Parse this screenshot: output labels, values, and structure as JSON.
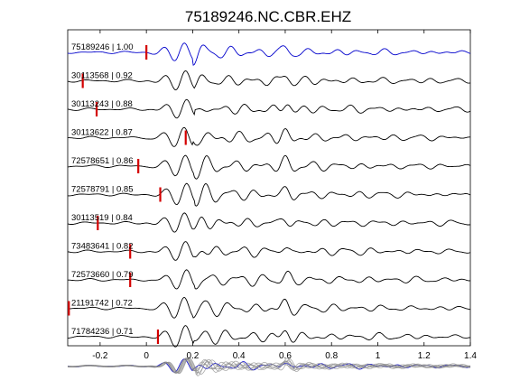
{
  "chart_data": {
    "type": "line",
    "title": "75189246.NC.CBR.EHZ",
    "xlabel": "",
    "ylabel": "",
    "xlim": [
      -0.34,
      1.4
    ],
    "x_ticks": [
      -0.2,
      0,
      0.2,
      0.4,
      0.6,
      0.8,
      1,
      1.2,
      1.4
    ],
    "x_tick_labels": [
      "-0.2",
      "0",
      "0.2",
      "0.4",
      "0.6",
      "0.8",
      "1",
      "1.2",
      "1.4"
    ],
    "grid": false,
    "colors": {
      "reference": "#0000cc",
      "trace": "#000000",
      "pick": "#d40000",
      "overlay": "#888888"
    },
    "series": [
      {
        "name": "75189246 | 1.00",
        "label_x": -0.34,
        "pick_x": 0.0,
        "reference": true
      },
      {
        "name": "30113568 | 0.92",
        "label_x": -0.34,
        "pick_x": -0.275
      },
      {
        "name": "30113243 | 0.88",
        "label_x": -0.34,
        "pick_x": -0.215
      },
      {
        "name": "30113622 | 0.87",
        "label_x": -0.34,
        "pick_x": 0.17
      },
      {
        "name": "72578651 | 0.86",
        "label_x": -0.34,
        "pick_x": -0.035
      },
      {
        "name": "72578791 | 0.85",
        "label_x": -0.34,
        "pick_x": 0.06
      },
      {
        "name": "30113519 | 0.84",
        "label_x": -0.34,
        "pick_x": -0.21
      },
      {
        "name": "73483641 | 0.82",
        "label_x": -0.34,
        "pick_x": -0.07
      },
      {
        "name": "72573660 | 0.79",
        "label_x": -0.34,
        "pick_x": -0.07
      },
      {
        "name": "21191742 | 0.72",
        "label_x": -0.34,
        "pick_x": -0.335
      },
      {
        "name": "71784236 | 0.71",
        "label_x": -0.34,
        "pick_x": 0.05
      }
    ],
    "overlay": {
      "description_free": true
    }
  }
}
